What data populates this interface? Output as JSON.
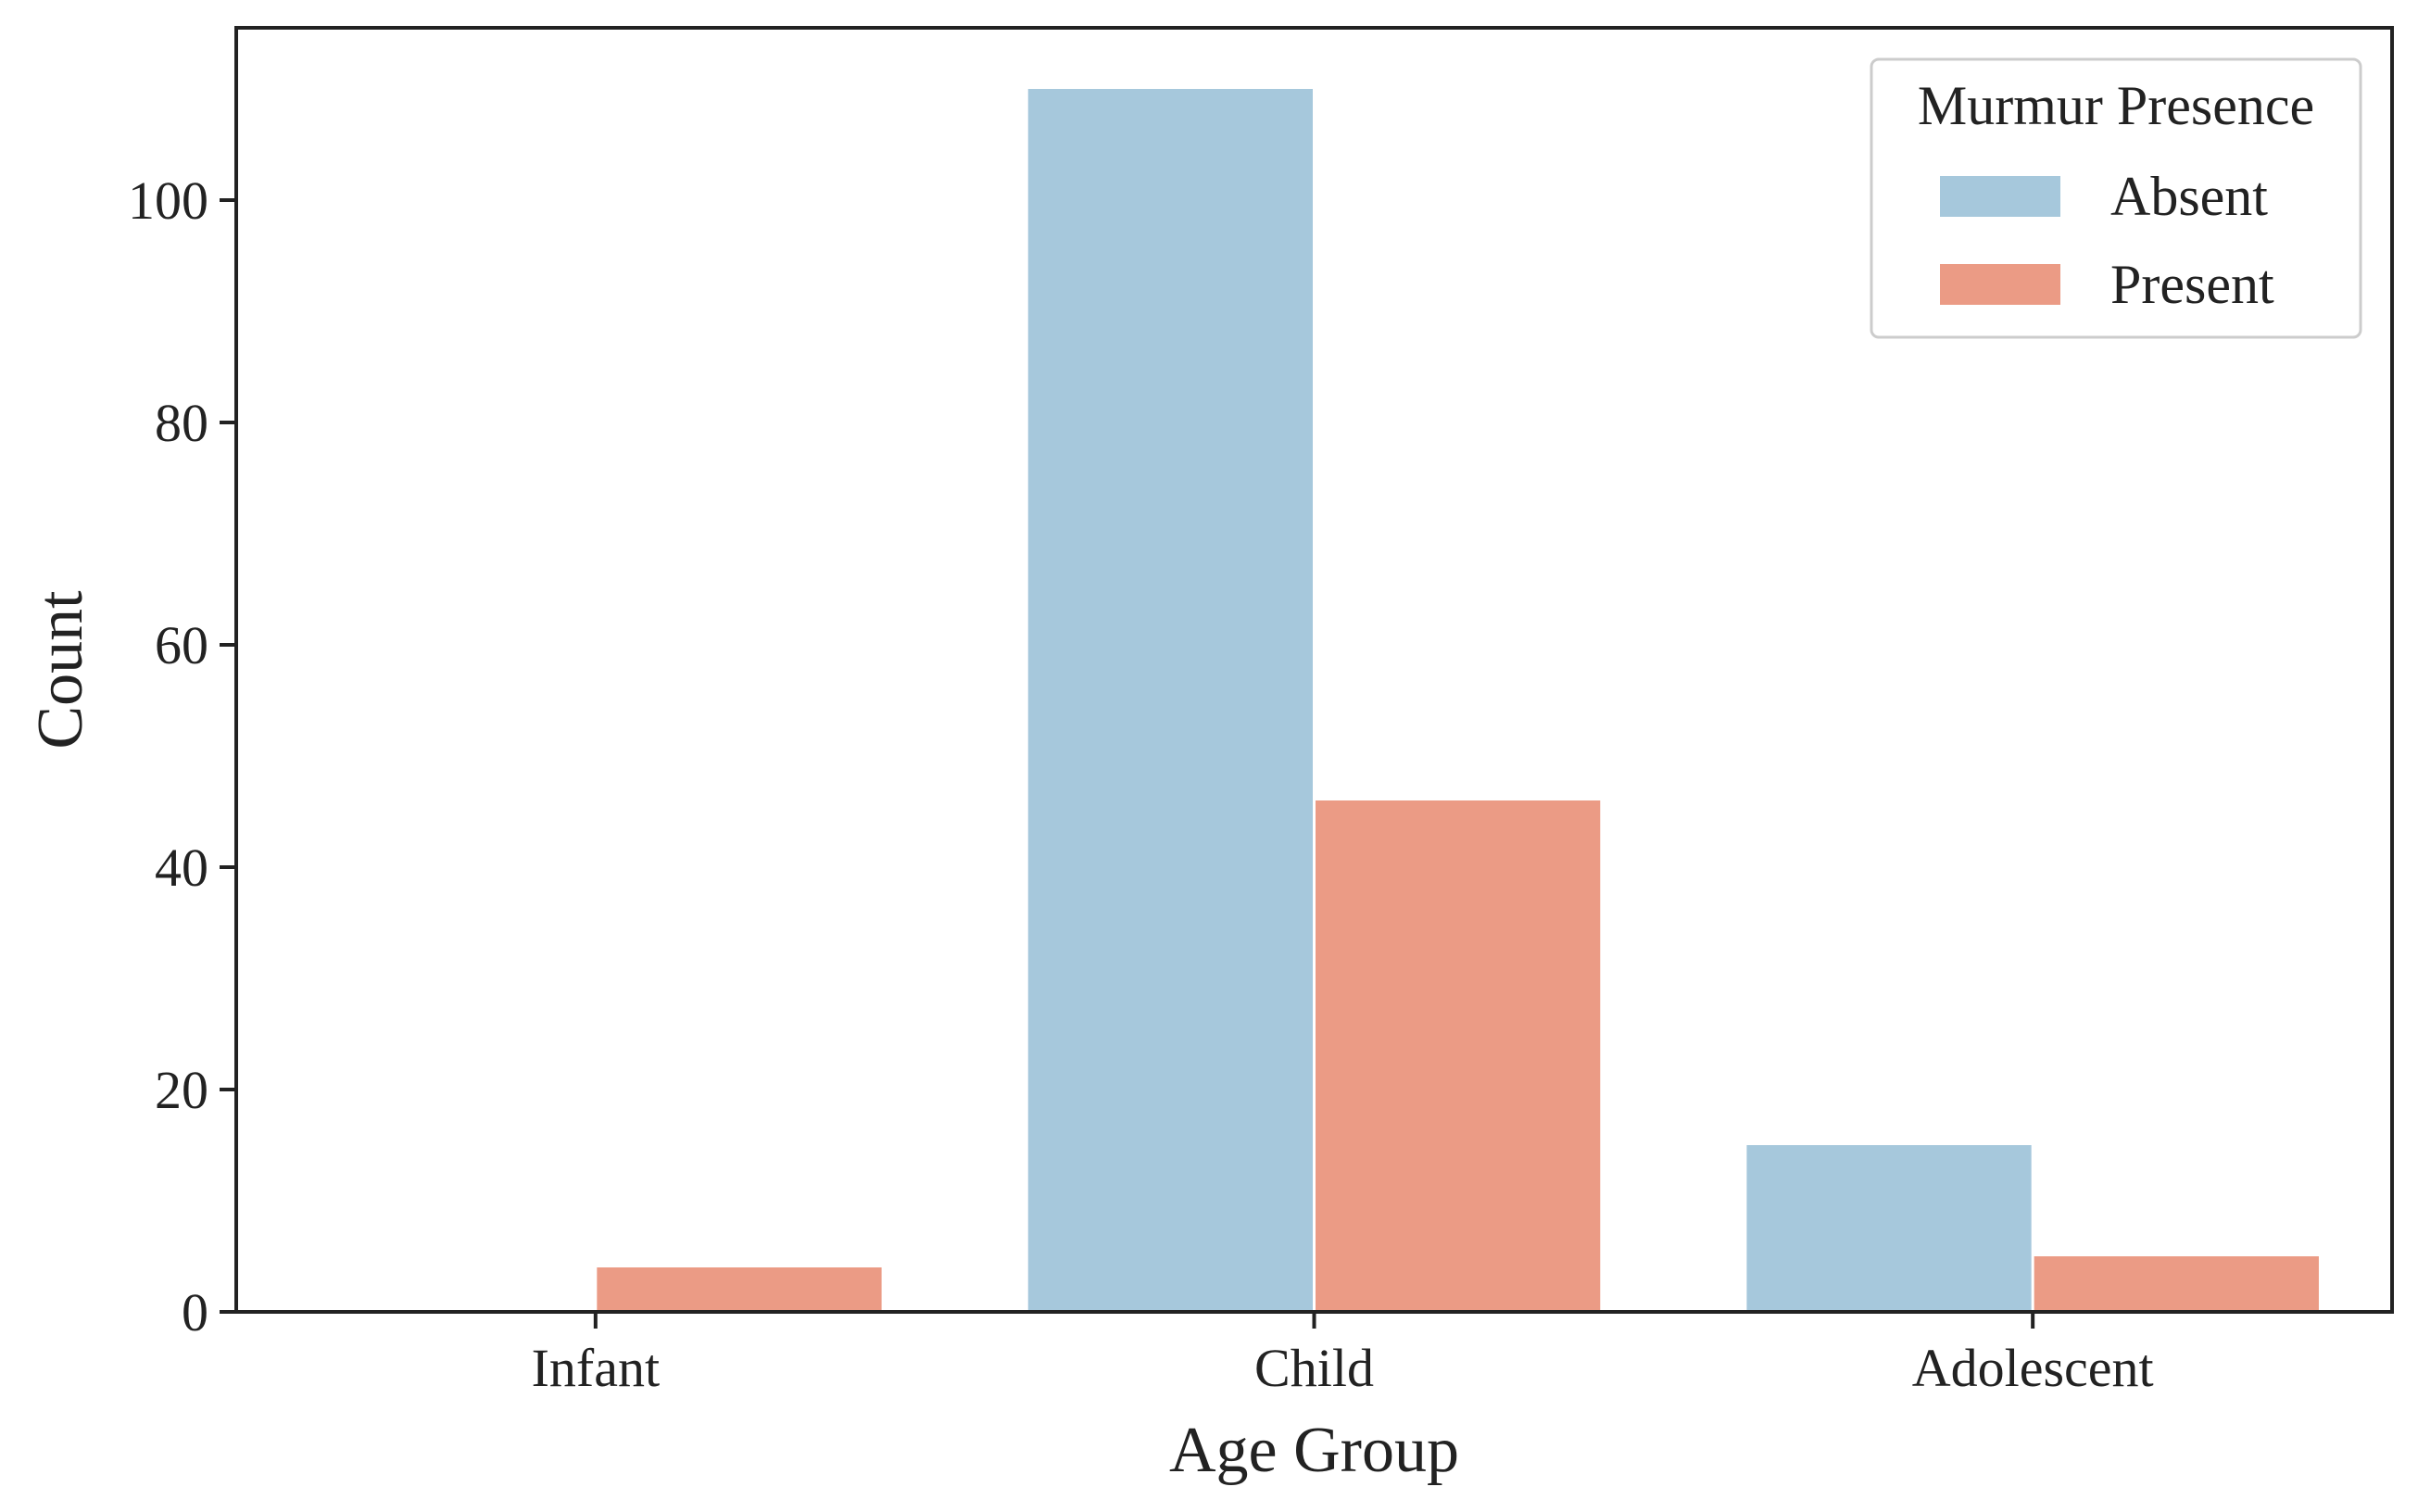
{
  "chart_data": {
    "type": "bar",
    "categories": [
      "Infant",
      "Child",
      "Adolescent"
    ],
    "series": [
      {
        "name": "Absent",
        "values": [
          0,
          110,
          15
        ],
        "color": "#a6c8dc"
      },
      {
        "name": "Present",
        "values": [
          4,
          46,
          5
        ],
        "color": "#eb9b85"
      }
    ],
    "xlabel": "Age Group",
    "ylabel": "Count",
    "ylim": [
      0,
      115.5
    ],
    "yticks": [
      0,
      20,
      40,
      60,
      80,
      100
    ],
    "grid": false,
    "legend": {
      "title": "Murmur Presence",
      "placement": "top-right"
    }
  }
}
